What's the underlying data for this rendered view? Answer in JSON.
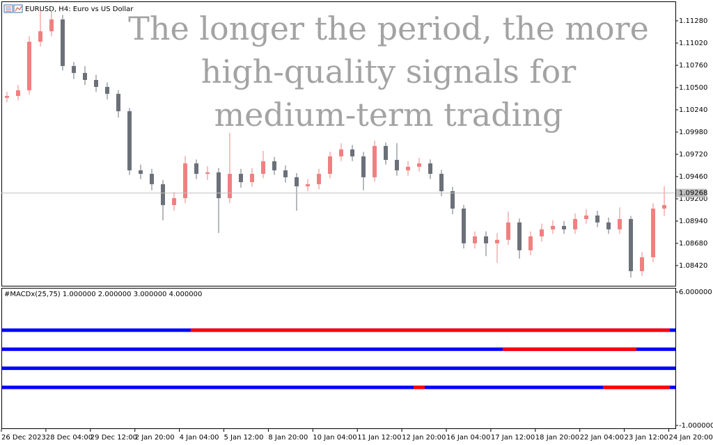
{
  "chart_data": [
    {
      "type": "candlestick",
      "title": "EURUSD, H4:  Euro vs US Dollar",
      "annotation": [
        "The longer the period, the more",
        "high-quality signals for",
        "medium-term trading"
      ],
      "up_color": "#f08080",
      "down_color": "#6b7079",
      "ylim": [
        1.08184,
        1.11499
      ],
      "yticks": [
        {
          "value": 1.1128,
          "label": "1.11280"
        },
        {
          "value": 1.1102,
          "label": "1.11020"
        },
        {
          "value": 1.1076,
          "label": "1.10760"
        },
        {
          "value": 1.105,
          "label": "1.10500"
        },
        {
          "value": 1.1024,
          "label": "1.10240"
        },
        {
          "value": 1.0998,
          "label": "1.09980"
        },
        {
          "value": 1.0972,
          "label": "1.09720"
        },
        {
          "value": 1.0946,
          "label": "1.09460"
        },
        {
          "value": 1.092,
          "label": "1.09200"
        },
        {
          "value": 1.0894,
          "label": "1.08940"
        },
        {
          "value": 1.0868,
          "label": "1.08680"
        },
        {
          "value": 1.0842,
          "label": "1.08420"
        }
      ],
      "current_price": 1.09268,
      "x_labels": [
        "26 Dec 2023",
        "28 Dec 04:00",
        "29 Dec 12:00",
        "2 Jan 20:00",
        "4 Jan 04:00",
        "5 Jan 12:00",
        "8 Jan 20:00",
        "10 Jan 04:00",
        "11 Jan 12:00",
        "12 Jan 20:00",
        "16 Jan 04:00",
        "17 Jan 12:00",
        "18 Jan 20:00",
        "22 Jan 04:00",
        "23 Jan 12:00",
        "24 Jan 20:00"
      ],
      "ohlc": [
        [
          1.1038,
          1.1045,
          1.1033,
          1.10402
        ],
        [
          1.10402,
          1.1053,
          1.1035,
          1.10468
        ],
        [
          1.10468,
          1.111,
          1.1042,
          1.11036
        ],
        [
          1.11036,
          1.114,
          1.1098,
          1.11158
        ],
        [
          1.11158,
          1.114,
          1.111,
          1.11296
        ],
        [
          1.11296,
          1.1135,
          1.107,
          1.10752
        ],
        [
          1.10752,
          1.108,
          1.106,
          1.10671
        ],
        [
          1.10671,
          1.1075,
          1.1053,
          1.10589
        ],
        [
          1.10589,
          1.1065,
          1.1045,
          1.10508
        ],
        [
          1.10508,
          1.1056,
          1.1036,
          1.10427
        ],
        [
          1.10427,
          1.1047,
          1.1015,
          1.10224
        ],
        [
          1.10224,
          1.1026,
          1.0948,
          1.09533
        ],
        [
          1.09533,
          1.096,
          1.0943,
          1.09492
        ],
        [
          1.09492,
          1.0955,
          1.093,
          1.09371
        ],
        [
          1.09371,
          1.0942,
          1.0895,
          1.09127
        ],
        [
          1.09127,
          1.0928,
          1.0906,
          1.09208
        ],
        [
          1.09208,
          1.097,
          1.0915,
          1.09614
        ],
        [
          1.09614,
          1.0966,
          1.0943,
          1.09492
        ],
        [
          1.09492,
          1.0958,
          1.0942,
          1.09509
        ],
        [
          1.09509,
          1.0956,
          1.088,
          1.09208
        ],
        [
          1.09208,
          1.0997,
          1.0915,
          1.09492
        ],
        [
          1.09492,
          1.0955,
          1.0933,
          1.09395
        ],
        [
          1.09395,
          1.0956,
          1.0934,
          1.09492
        ],
        [
          1.09492,
          1.0976,
          1.0944,
          1.09639
        ],
        [
          1.09639,
          1.0969,
          1.0948,
          1.09533
        ],
        [
          1.09533,
          1.0959,
          1.0939,
          1.09452
        ],
        [
          1.09452,
          1.095,
          1.0906,
          1.09346
        ],
        [
          1.09346,
          1.0943,
          1.0929,
          1.09371
        ],
        [
          1.09371,
          1.0955,
          1.0931,
          1.09492
        ],
        [
          1.09492,
          1.0975,
          1.0944,
          1.09696
        ],
        [
          1.09696,
          1.0985,
          1.0964,
          1.09777
        ],
        [
          1.09777,
          1.0983,
          1.0964,
          1.09696
        ],
        [
          1.09696,
          1.0975,
          1.093,
          1.09452
        ],
        [
          1.09452,
          1.0988,
          1.094,
          1.09818
        ],
        [
          1.09818,
          1.0986,
          1.096,
          1.09655
        ],
        [
          1.09655,
          1.0985,
          1.0947,
          1.09533
        ],
        [
          1.09533,
          1.0964,
          1.0947,
          1.09574
        ],
        [
          1.09574,
          1.0968,
          1.0952,
          1.09614
        ],
        [
          1.09614,
          1.0966,
          1.0943,
          1.09492
        ],
        [
          1.09492,
          1.0954,
          1.0923,
          1.09289
        ],
        [
          1.09289,
          1.0934,
          1.0902,
          1.09086
        ],
        [
          1.09086,
          1.0913,
          1.0862,
          1.0868
        ],
        [
          1.0868,
          1.0882,
          1.0862,
          1.08761
        ],
        [
          1.08761,
          1.0882,
          1.0853,
          1.0868
        ],
        [
          1.0868,
          1.088,
          1.0845,
          1.08721
        ],
        [
          1.08721,
          1.0905,
          1.0866,
          1.08924
        ],
        [
          1.08924,
          1.0897,
          1.085,
          1.08599
        ],
        [
          1.08599,
          1.0882,
          1.0854,
          1.08761
        ],
        [
          1.08761,
          1.0891,
          1.087,
          1.08843
        ],
        [
          1.08843,
          1.0895,
          1.0879,
          1.08883
        ],
        [
          1.08883,
          1.0894,
          1.0879,
          1.08843
        ],
        [
          1.08843,
          1.0903,
          1.0879,
          1.08964
        ],
        [
          1.08964,
          1.0908,
          1.0891,
          1.09005
        ],
        [
          1.09005,
          1.0906,
          1.0887,
          1.08924
        ],
        [
          1.08924,
          1.0898,
          1.0879,
          1.08843
        ],
        [
          1.08843,
          1.091,
          1.0879,
          1.08964
        ],
        [
          1.08964,
          1.09,
          1.0828,
          1.08355
        ],
        [
          1.08355,
          1.0858,
          1.083,
          1.08517
        ],
        [
          1.08517,
          1.0915,
          1.0846,
          1.09086
        ],
        [
          1.09086,
          1.0935,
          1.09,
          1.09127
        ]
      ]
    },
    {
      "type": "level-lines",
      "title": "#MACDx(25,75)",
      "ylim": [
        -1.15,
        6.22
      ],
      "yticks": [
        {
          "value": 6,
          "label": "6.000000"
        },
        {
          "value": -1,
          "label": "-1.000000"
        }
      ],
      "base_color": "#0000ff",
      "signal_color": "#ff0000",
      "series": [
        {
          "value": 1,
          "value_label": "1.000000",
          "segments": [
            {
              "start": 37,
              "end": 37
            },
            {
              "start": 54,
              "end": 59
            }
          ]
        },
        {
          "value": 2,
          "value_label": "2.000000",
          "segments": []
        },
        {
          "value": 3,
          "value_label": "3.000000",
          "segments": [
            {
              "start": 45,
              "end": 56
            }
          ]
        },
        {
          "value": 4,
          "value_label": "4.000000",
          "segments": [
            {
              "start": 17,
              "end": 59
            }
          ]
        }
      ]
    }
  ]
}
